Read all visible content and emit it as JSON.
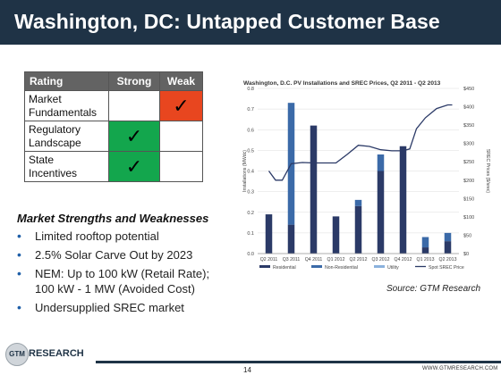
{
  "header": {
    "title": "Washington, DC: Untapped Customer Base"
  },
  "rating_table": {
    "headers": [
      "Rating",
      "Strong",
      "Weak"
    ],
    "rows": [
      {
        "label_line1": "Market",
        "label_line2": "Fundamentals",
        "rating": "Weak"
      },
      {
        "label_line1": "Regulatory",
        "label_line2": "Landscape",
        "rating": "Strong"
      },
      {
        "label_line1": "State",
        "label_line2": "Incentives",
        "rating": "Strong"
      }
    ],
    "check_glyph": "✓",
    "colors": {
      "weak": "#e8461f",
      "strong": "#13a64d"
    }
  },
  "strengths": {
    "title": "Market Strengths and Weaknesses",
    "bullets": [
      "Limited rooftop potential",
      "2.5% Solar Carve Out by 2023",
      "NEM: Up to 100 kW (Retail Rate); 100 kW - 1 MW (Avoided Cost)",
      "Undersupplied SREC market"
    ]
  },
  "chart_data": {
    "type": "bar",
    "title": "Washington, D.C. PV Installations and SREC Prices, Q2 2011 - Q2 2013",
    "categories": [
      "Q2 2011",
      "Q3 2011",
      "Q4 2011",
      "Q1 2012",
      "Q2 2012",
      "Q3 2012",
      "Q4 2012",
      "Q1 2013",
      "Q2 2013"
    ],
    "stacked": true,
    "ylabel": "Installations (MWdc)",
    "ylim": [
      0,
      0.8
    ],
    "yticks": [
      "0.0",
      "0.1",
      "0.2",
      "0.3",
      "0.4",
      "0.5",
      "0.6",
      "0.7",
      "0.8"
    ],
    "y2label": "SREC Prices ($/srec)",
    "y2lim": [
      0,
      450
    ],
    "y2ticks": [
      "$0",
      "$50",
      "$100",
      "$150",
      "$200",
      "$250",
      "$300",
      "$350",
      "$400",
      "$450"
    ],
    "series": [
      {
        "name": "Residential",
        "kind": "bar",
        "color": "#2b3a67",
        "values": [
          0.19,
          0.14,
          0.62,
          0.18,
          0.23,
          0.4,
          0.52,
          0.03,
          0.06
        ]
      },
      {
        "name": "Non-Residential",
        "kind": "bar",
        "color": "#3b6aa8",
        "values": [
          0.0,
          0.59,
          0.0,
          0.0,
          0.03,
          0.08,
          0.0,
          0.05,
          0.04
        ]
      },
      {
        "name": "Utility",
        "kind": "bar",
        "color": "#8bb2dd",
        "values": [
          0,
          0,
          0,
          0,
          0,
          0,
          0,
          0,
          0
        ]
      },
      {
        "name": "Spot SREC Price",
        "kind": "line",
        "axis": "y2",
        "color": "#2b3a67",
        "x": [
          0,
          0.3,
          0.6,
          1,
          1.5,
          2,
          2.5,
          3,
          3.5,
          4,
          4.5,
          5,
          5.5,
          6,
          6.3,
          6.6,
          7,
          7.5,
          8,
          8.2
        ],
        "values": [
          225,
          200,
          200,
          245,
          248,
          247,
          247,
          247,
          270,
          295,
          292,
          283,
          280,
          280,
          285,
          340,
          370,
          395,
          405,
          405
        ]
      }
    ],
    "legend": "bottom"
  },
  "source": "Source: GTM Research",
  "footer": {
    "page": "14",
    "url": "WWW.GTMRESEARCH.COM",
    "logo_mark": "GTM",
    "logo_text": "RESEARCH"
  }
}
